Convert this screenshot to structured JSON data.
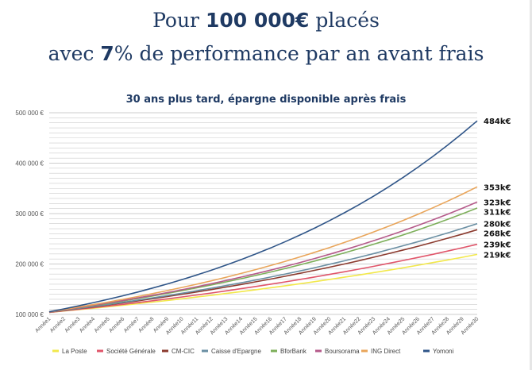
{
  "header": {
    "line1": {
      "pre": "Pour ",
      "bold": "100 000€",
      "post": " placés"
    },
    "line2": {
      "pre": "avec ",
      "bold": "7",
      "post": "% de performance par an avant frais"
    }
  },
  "colors": {
    "title": "#1f3a63",
    "grid": "#cccccc"
  },
  "chart_data": {
    "type": "line",
    "title": "30 ans plus tard, épargne disponible après frais",
    "xlabel": "",
    "ylabel": "",
    "ylim": [
      100000,
      500000
    ],
    "yticks": [
      100000,
      200000,
      300000,
      400000,
      500000
    ],
    "ytick_labels": [
      "100 000 €",
      "200 000 €",
      "300 000 €",
      "400 000 €",
      "500 000 €"
    ],
    "categories": [
      "Année1",
      "Année2",
      "Année3",
      "Année4",
      "Année5",
      "Année6",
      "Année7",
      "Année8",
      "Année9",
      "Année10",
      "Année11",
      "Année12",
      "Année13",
      "Année14",
      "Année15",
      "Année16",
      "Année17",
      "Année18",
      "Année19",
      "Année20",
      "Année21",
      "Année22",
      "Année23",
      "Année24",
      "Année25",
      "Année26",
      "Année27",
      "Année28",
      "Année29",
      "Année30"
    ],
    "grid": true,
    "legend_position": "bottom",
    "series": [
      {
        "name": "La Poste",
        "color": "#f2e84b",
        "start": 104000,
        "end": 219000,
        "end_label": "219k€"
      },
      {
        "name": "Société Générale",
        "color": "#e0556a",
        "start": 104000,
        "end": 239000,
        "end_label": "239k€"
      },
      {
        "name": "CM-CIC",
        "color": "#8b3a2e",
        "start": 104500,
        "end": 268000,
        "end_label": "268k€"
      },
      {
        "name": "Caisse d'Epargne",
        "color": "#6a8fa3",
        "start": 104700,
        "end": 280000,
        "end_label": "280k€"
      },
      {
        "name": "BforBank",
        "color": "#7daf5a",
        "start": 105000,
        "end": 311000,
        "end_label": "311k€"
      },
      {
        "name": "Boursorama",
        "color": "#b55a8a",
        "start": 105200,
        "end": 323000,
        "end_label": "323k€"
      },
      {
        "name": "ING Direct",
        "color": "#e9a55a",
        "start": 105500,
        "end": 353000,
        "end_label": "353k€"
      },
      {
        "name": "Yomoni",
        "color": "#2f5588",
        "start": 105400,
        "end": 484000,
        "end_label": "484k€"
      }
    ]
  }
}
